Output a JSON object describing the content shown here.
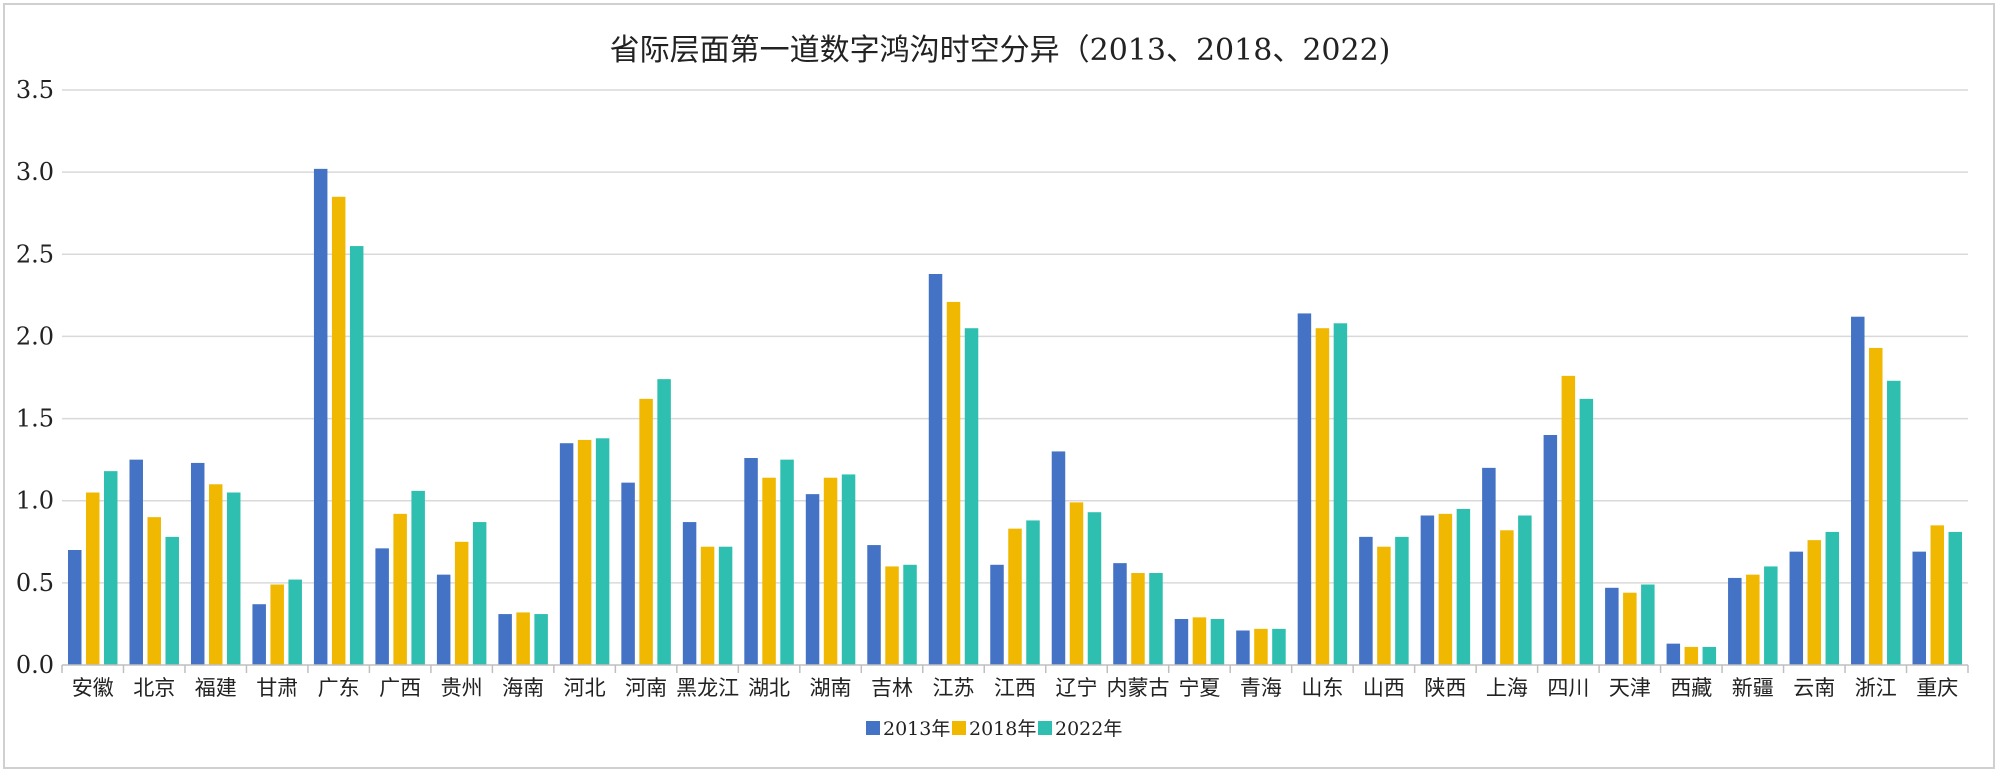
{
  "chart_data": {
    "type": "bar",
    "title": "省际层面第一道数字鸿沟时空分异（2013、2018、2022)",
    "xlabel": "",
    "ylabel": "",
    "ylim": [
      0,
      3.5
    ],
    "yticks": [
      "0.0",
      "0.5",
      "1.0",
      "1.5",
      "2.0",
      "2.5",
      "3.0",
      "3.5"
    ],
    "grid": true,
    "legend_position": "bottom",
    "categories": [
      "安徽",
      "北京",
      "福建",
      "甘肃",
      "广东",
      "广西",
      "贵州",
      "海南",
      "河北",
      "河南",
      "黑龙江",
      "湖北",
      "湖南",
      "吉林",
      "江苏",
      "江西",
      "辽宁",
      "内蒙古",
      "宁夏",
      "青海",
      "山东",
      "山西",
      "陕西",
      "上海",
      "四川",
      "天津",
      "西藏",
      "新疆",
      "云南",
      "浙江",
      "重庆"
    ],
    "series": [
      {
        "name": "2013年",
        "color": "#4472c4",
        "values": [
          0.7,
          1.25,
          1.23,
          0.37,
          3.02,
          0.71,
          0.55,
          0.31,
          1.35,
          1.11,
          0.87,
          1.26,
          1.04,
          0.73,
          2.38,
          0.61,
          1.3,
          0.62,
          0.28,
          0.21,
          2.14,
          0.78,
          0.91,
          1.2,
          1.4,
          0.47,
          0.13,
          0.53,
          0.69,
          2.12,
          0.69
        ]
      },
      {
        "name": "2018年",
        "color": "#f0b800",
        "values": [
          1.05,
          0.9,
          1.1,
          0.49,
          2.85,
          0.92,
          0.75,
          0.32,
          1.37,
          1.62,
          0.72,
          1.14,
          1.14,
          0.6,
          2.21,
          0.83,
          0.99,
          0.56,
          0.29,
          0.22,
          2.05,
          0.72,
          0.92,
          0.82,
          1.76,
          0.44,
          0.11,
          0.55,
          0.76,
          1.93,
          0.85
        ]
      },
      {
        "name": "2022年",
        "color": "#2ebfb0",
        "values": [
          1.18,
          0.78,
          1.05,
          0.52,
          2.55,
          1.06,
          0.87,
          0.31,
          1.38,
          1.74,
          0.72,
          1.25,
          1.16,
          0.61,
          2.05,
          0.88,
          0.93,
          0.56,
          0.28,
          0.22,
          2.08,
          0.78,
          0.95,
          0.91,
          1.62,
          0.49,
          0.11,
          0.6,
          0.81,
          1.73,
          0.81
        ]
      }
    ]
  }
}
